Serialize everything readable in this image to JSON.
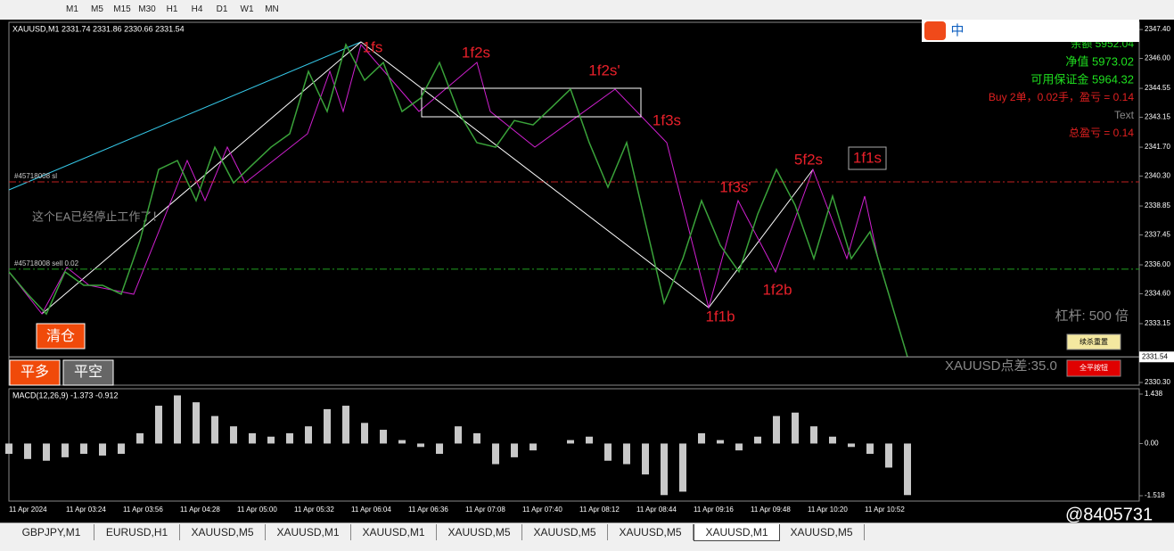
{
  "toolbar": {
    "timeframes": [
      "M1",
      "M5",
      "M15",
      "M30",
      "H1",
      "H4",
      "D1",
      "W1",
      "MN"
    ]
  },
  "chart_data": [
    {
      "type": "line",
      "title": "XAUUSD,M1  2331.74 2331.86 2330.66 2331.54",
      "color": "#3aa33a",
      "values": [
        2335.66,
        2334.58,
        2333.62,
        2335.66,
        2335.01,
        2335.01,
        2334.58,
        2337.17,
        2340.62,
        2341.05,
        2339.11,
        2341.7,
        2339.97,
        2340.84,
        2341.7,
        2342.35,
        2345.37,
        2343.43,
        2346.67,
        2344.94,
        2345.8,
        2343.43,
        2344.08,
        2345.8,
        2343.43,
        2341.92,
        2341.7,
        2342.99,
        2342.78,
        2343.64,
        2344.51,
        2341.92,
        2339.76,
        2341.92,
        2338.03,
        2334.15,
        2336.3,
        2339.11,
        2336.95,
        2335.66,
        2338.46,
        2340.62,
        2338.89,
        2336.3,
        2339.33,
        2336.3,
        2337.6,
        2334.58,
        2331.54
      ],
      "ylim": [
        2330.17,
        2347.75
      ],
      "yticks": [
        {
          "value": 2347.4,
          "label": "2347.40"
        },
        {
          "value": 2346.0,
          "label": "2346.00"
        },
        {
          "value": 2344.55,
          "label": "2344.55"
        },
        {
          "value": 2343.15,
          "label": "2343.15"
        },
        {
          "value": 2341.7,
          "label": "2341.70"
        },
        {
          "value": 2340.3,
          "label": "2340.30"
        },
        {
          "value": 2338.85,
          "label": "2338.85"
        },
        {
          "value": 2337.45,
          "label": "2337.45"
        },
        {
          "value": 2336.0,
          "label": "2336.00"
        },
        {
          "value": 2334.6,
          "label": "2334.60"
        },
        {
          "value": 2333.15,
          "label": "2333.15"
        },
        {
          "value": 2330.3,
          "label": "2330.30"
        }
      ],
      "last_price": 2331.54,
      "levels": [
        {
          "label": "#45718008 sl",
          "value": 2340.02,
          "color": "#c02020"
        },
        {
          "label": "#45718008 sell 0.02",
          "value": 2335.79,
          "color": "#20a020"
        }
      ],
      "annotations": [
        "1fs",
        "1f2s",
        "1f2s'",
        "1f3s",
        "1f3s'",
        "5f2s",
        "1f1s",
        "1f1b",
        "1f2b"
      ]
    },
    {
      "type": "bar",
      "title": "MACD(12,26,9) -1.373 -0.912",
      "color": "#c8c8c8",
      "values": [
        -0.3,
        -0.45,
        -0.5,
        -0.4,
        -0.3,
        -0.35,
        -0.3,
        0.3,
        1.1,
        1.4,
        1.2,
        0.8,
        0.5,
        0.3,
        0.2,
        0.3,
        0.5,
        1.0,
        1.1,
        0.6,
        0.4,
        0.1,
        -0.1,
        -0.3,
        0.5,
        0.3,
        -0.6,
        -0.4,
        -0.2,
        0.0,
        0.1,
        0.2,
        -0.5,
        -0.6,
        -0.9,
        -1.5,
        -1.4,
        0.3,
        0.1,
        -0.2,
        0.2,
        0.8,
        0.9,
        0.5,
        0.2,
        -0.1,
        -0.3,
        -0.7,
        -1.5
      ],
      "ylim": [
        -1.674,
        1.594
      ],
      "yticks": [
        1.438,
        {
          "value": 0,
          "label": "0.00"
        },
        -1.518
      ]
    }
  ],
  "time_axis": [
    "11 Apr 2024",
    "11 Apr 03:24",
    "11 Apr 03:56",
    "11 Apr 04:28",
    "11 Apr 05:00",
    "11 Apr 05:32",
    "11 Apr 06:04",
    "11 Apr 06:36",
    "11 Apr 07:08",
    "11 Apr 07:40",
    "11 Apr 08:12",
    "11 Apr 08:44",
    "11 Apr 09:16",
    "11 Apr 09:48",
    "11 Apr 10:20",
    "11 Apr 10:52"
  ],
  "account": {
    "balance": "余额 5952.04",
    "equity": "净值 5973.02",
    "free_margin": "可用保证金 5964.32",
    "orders": "Buy 2单，0.02手，盈亏 = 0.14",
    "text": "Text",
    "total": "总盈亏 = 0.14"
  },
  "ea_notice": "这个EA已经停止工作了！",
  "leverage": "杠杆: 500 倍",
  "spread": "XAUUSD点差:35.0",
  "buttons": {
    "close_all": "清仓",
    "close_long": "平多",
    "close_short": "平空",
    "reset": "续杀重置",
    "close_all_btn": "全平按钮"
  },
  "ime": "中",
  "tabs": [
    "GBPJPY,M1",
    "EURUSD,H1",
    "XAUUSD,M5",
    "XAUUSD,M1",
    "XAUUSD,M1",
    "XAUUSD,M5",
    "XAUUSD,M5",
    "XAUUSD,M5",
    "XAUUSD,M1",
    "XAUUSD,M5"
  ],
  "active_tab": 8,
  "watermark": "@8405731"
}
